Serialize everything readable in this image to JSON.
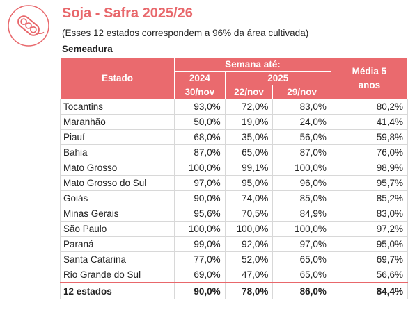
{
  "header": {
    "title": "Soja - Safra 2025/26",
    "subtitle": "(Esses 12 estados correspondem a 96% da área cultivada)",
    "section": "Semeadura"
  },
  "colors": {
    "accent": "#ea6a6e",
    "title": "#e8676b"
  },
  "icons": {
    "logo": "soybean-pod-icon"
  },
  "table": {
    "col_estado": "Estado",
    "col_semana": "Semana até:",
    "col_media": "Média  5 anos",
    "year_2024": "2024",
    "year_2025": "2025",
    "date_2024": "30/nov",
    "date_2025_a": "22/nov",
    "date_2025_b": "29/nov",
    "rows": [
      [
        "Tocantins",
        "93,0%",
        "72,0%",
        "83,0%",
        "80,2%"
      ],
      [
        "Maranhão",
        "50,0%",
        "19,0%",
        "24,0%",
        "41,4%"
      ],
      [
        "Piauí",
        "68,0%",
        "35,0%",
        "56,0%",
        "59,8%"
      ],
      [
        "Bahia",
        "87,0%",
        "65,0%",
        "87,0%",
        "76,0%"
      ],
      [
        "Mato Grosso",
        "100,0%",
        "99,1%",
        "100,0%",
        "98,9%"
      ],
      [
        "Mato Grosso do Sul",
        "97,0%",
        "95,0%",
        "96,0%",
        "95,7%"
      ],
      [
        "Goiás",
        "90,0%",
        "74,0%",
        "85,0%",
        "85,2%"
      ],
      [
        "Minas Gerais",
        "95,6%",
        "70,5%",
        "84,9%",
        "83,0%"
      ],
      [
        "São Paulo",
        "100,0%",
        "100,0%",
        "100,0%",
        "97,2%"
      ],
      [
        "Paraná",
        "99,0%",
        "92,0%",
        "97,0%",
        "95,0%"
      ],
      [
        "Santa Catarina",
        "77,0%",
        "52,0%",
        "65,0%",
        "69,7%"
      ],
      [
        "Rio Grande do Sul",
        "69,0%",
        "47,0%",
        "65,0%",
        "56,6%"
      ]
    ],
    "total": [
      "12 estados",
      "90,0%",
      "78,0%",
      "86,0%",
      "84,4%"
    ]
  }
}
